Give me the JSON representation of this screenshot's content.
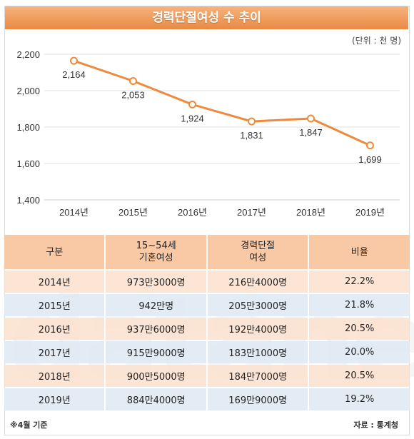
{
  "header": {
    "title": "경력단절여성 수 추이",
    "unit": "(단위 : 천 명)"
  },
  "chart_data": {
    "type": "line",
    "categories": [
      "2014년",
      "2015년",
      "2016년",
      "2017년",
      "2018년",
      "2019년"
    ],
    "values": [
      2164,
      2053,
      1924,
      1831,
      1847,
      1699
    ],
    "value_labels": [
      "2,164",
      "2,053",
      "1,924",
      "1,831",
      "1,847",
      "1,699"
    ],
    "yticks": [
      2200,
      2000,
      1800,
      1600,
      1400
    ],
    "ytick_labels": [
      "2,200",
      "2,000",
      "1,800",
      "1,600",
      "1,400"
    ],
    "ylim": [
      1400,
      2200
    ],
    "grid": true,
    "line_color": "#ee8a3e",
    "marker_fill": "#ffffff"
  },
  "table": {
    "headers": [
      "구분",
      "15~54세\n기혼여성",
      "경력단절\n여성",
      "비율"
    ],
    "rows": [
      [
        "2014년",
        "973만3000명",
        "216만4000명",
        "22.2%"
      ],
      [
        "2015년",
        "942만명",
        "205만3000명",
        "21.8%"
      ],
      [
        "2016년",
        "937만6000명",
        "192만4000명",
        "20.5%"
      ],
      [
        "2017년",
        "915만9000명",
        "183만1000명",
        "20.0%"
      ],
      [
        "2018년",
        "900만5000명",
        "184만7000명",
        "20.5%"
      ],
      [
        "2019년",
        "884만4000명",
        "169만9000명",
        "19.2%"
      ]
    ]
  },
  "footer": {
    "note": "※4월 기준",
    "source": "자료 : 통계청"
  },
  "watermark": "datanews",
  "colors": {
    "title_bar": "#ec8c47",
    "header_bg": "#f9c8a4",
    "row_peach": "#fbe0ce",
    "row_blue": "#e0eaf4"
  }
}
